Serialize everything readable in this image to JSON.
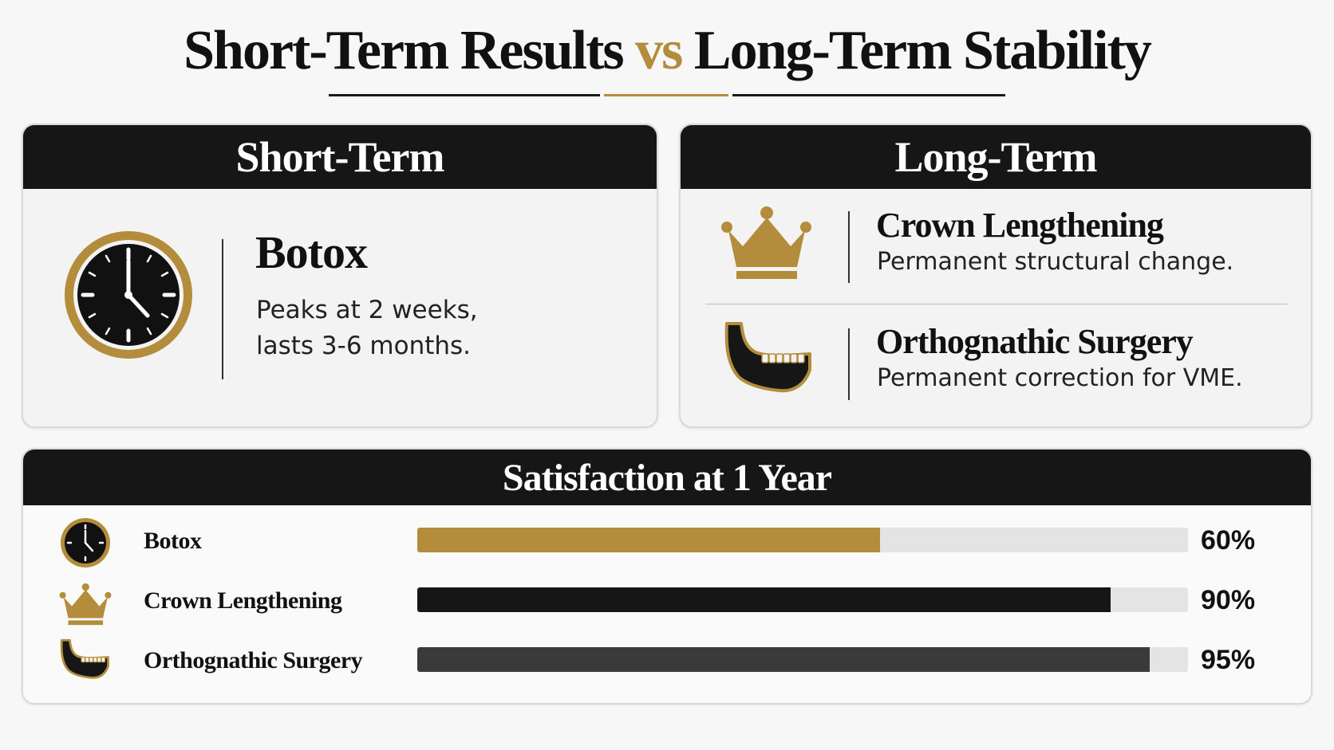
{
  "title": {
    "part1": "Short-Term Results",
    "vs": "vs",
    "part2": "Long-Term Stability"
  },
  "colors": {
    "gold": "#b48d3c",
    "black": "#161616",
    "dark_gray": "#3a3a3a",
    "track": "#e4e4e4"
  },
  "short_term": {
    "heading": "Short-Term",
    "item": {
      "icon": "clock-icon",
      "name": "Botox",
      "desc_line1": "Peaks at 2 weeks,",
      "desc_line2": "lasts 3-6 months."
    }
  },
  "long_term": {
    "heading": "Long-Term",
    "items": [
      {
        "icon": "crown-icon",
        "name": "Crown Lengthening",
        "desc": "Permanent structural change."
      },
      {
        "icon": "jaw-icon",
        "name": "Orthognathic Surgery",
        "desc": "Permanent correction for VME."
      }
    ]
  },
  "satisfaction": {
    "heading": "Satisfaction at 1 Year",
    "rows": [
      {
        "icon": "clock-icon",
        "label": "Botox",
        "value": 60,
        "value_text": "60%",
        "color": "#b48d3c"
      },
      {
        "icon": "crown-icon",
        "label": "Crown Lengthening",
        "value": 90,
        "value_text": "90%",
        "color": "#161616"
      },
      {
        "icon": "jaw-icon",
        "label": "Orthognathic Surgery",
        "value": 95,
        "value_text": "95%",
        "color": "#3a3a3a"
      }
    ]
  }
}
